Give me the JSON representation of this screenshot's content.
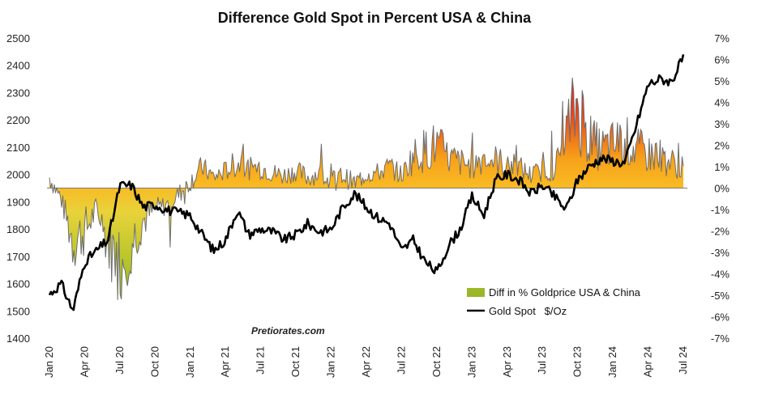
{
  "chart_data": {
    "type": "line",
    "title": "Difference Gold Spot in Percent USA & China",
    "watermark": "Pretiorates.com",
    "x_tick_labels": [
      "Jan 20",
      "Apr 20",
      "Jul 20",
      "Oct 20",
      "Jan 21",
      "Apr 21",
      "Jul 21",
      "Oct 21",
      "Jan 22",
      "Apr 22",
      "Jul 22",
      "Oct 22",
      "Jan 23",
      "Apr 23",
      "Jul 23",
      "Oct 23",
      "Jan 24",
      "Apr 24",
      "Jul 24"
    ],
    "y_left_ticks": [
      "1400",
      "1500",
      "1600",
      "1700",
      "1800",
      "1900",
      "2000",
      "2100",
      "2200",
      "2300",
      "2400",
      "2500"
    ],
    "y_left_range": [
      1400,
      2500
    ],
    "y_right_ticks": [
      "7%",
      "6%",
      "5%",
      "4%",
      "3%",
      "2%",
      "1%",
      "0%",
      "-1%",
      "-2%",
      "-3%",
      "-4%",
      "-5%",
      "-6%",
      "-7%"
    ],
    "y_right_range": [
      -7,
      7
    ],
    "legend_position": "bottom-right",
    "series": [
      {
        "name": "Diff in % Goldprice USA & China",
        "axis": "right",
        "style": "area",
        "x": [
          "Jan 20",
          "Feb 20",
          "Mar 20",
          "Apr 20",
          "May 20",
          "Jun 20",
          "Jul 20",
          "Aug 20",
          "Sep 20",
          "Oct 20",
          "Nov 20",
          "Dec 20",
          "Jan 21",
          "Feb 21",
          "Mar 21",
          "Apr 21",
          "May 21",
          "Jun 21",
          "Jul 21",
          "Aug 21",
          "Sep 21",
          "Oct 21",
          "Nov 21",
          "Dec 21",
          "Jan 22",
          "Feb 22",
          "Mar 22",
          "Apr 22",
          "May 22",
          "Jun 22",
          "Jul 22",
          "Aug 22",
          "Sep 22",
          "Oct 22",
          "Nov 22",
          "Dec 22",
          "Jan 23",
          "Feb 23",
          "Mar 23",
          "Apr 23",
          "May 23",
          "Jun 23",
          "Jul 23",
          "Aug 23",
          "Sep 23",
          "Oct 23",
          "Nov 23",
          "Dec 23",
          "Jan 24",
          "Feb 24",
          "Mar 24",
          "Apr 24",
          "May 24",
          "Jun 24",
          "Jul 24"
        ],
        "values": [
          0.5,
          -0.5,
          -2.5,
          -2.0,
          -1.0,
          -2.5,
          -3.5,
          -2.5,
          -1.5,
          -1.0,
          -0.8,
          -0.3,
          0.3,
          1.0,
          0.5,
          0.8,
          1.2,
          0.9,
          1.0,
          0.7,
          0.6,
          0.8,
          0.5,
          0.7,
          0.3,
          0.6,
          0.2,
          0.7,
          0.7,
          1.0,
          0.6,
          1.5,
          1.8,
          2.0,
          1.4,
          1.2,
          1.0,
          1.5,
          1.3,
          1.1,
          1.0,
          0.6,
          0.8,
          0.8,
          2.5,
          4.0,
          2.2,
          1.8,
          2.0,
          2.2,
          1.8,
          1.6,
          1.5,
          1.2,
          0.9
        ]
      },
      {
        "name": "Gold Spot   $/Oz",
        "axis": "left",
        "style": "line",
        "x": [
          "Jan 20",
          "Feb 20",
          "Mar 20",
          "Apr 20",
          "May 20",
          "Jun 20",
          "Jul 20",
          "Aug 20",
          "Sep 20",
          "Oct 20",
          "Nov 20",
          "Dec 20",
          "Jan 21",
          "Feb 21",
          "Mar 21",
          "Apr 21",
          "May 21",
          "Jun 21",
          "Jul 21",
          "Aug 21",
          "Sep 21",
          "Oct 21",
          "Nov 21",
          "Dec 21",
          "Jan 22",
          "Feb 22",
          "Mar 22",
          "Apr 22",
          "May 22",
          "Jun 22",
          "Jul 22",
          "Aug 22",
          "Sep 22",
          "Oct 22",
          "Nov 22",
          "Dec 22",
          "Jan 23",
          "Feb 23",
          "Mar 23",
          "Apr 23",
          "May 23",
          "Jun 23",
          "Jul 23",
          "Aug 23",
          "Sep 23",
          "Oct 23",
          "Nov 23",
          "Dec 23",
          "Jan 24",
          "Feb 24",
          "Mar 24",
          "Apr 24",
          "May 24",
          "Jun 24",
          "Jul 24"
        ],
        "values": [
          1560,
          1600,
          1500,
          1680,
          1720,
          1760,
          1960,
          1960,
          1880,
          1890,
          1870,
          1860,
          1850,
          1780,
          1720,
          1760,
          1870,
          1780,
          1800,
          1790,
          1760,
          1780,
          1820,
          1790,
          1800,
          1880,
          1930,
          1880,
          1840,
          1820,
          1720,
          1760,
          1680,
          1640,
          1740,
          1800,
          1920,
          1850,
          1980,
          2000,
          1980,
          1930,
          1960,
          1920,
          1870,
          1980,
          2030,
          2060,
          2050,
          2040,
          2180,
          2330,
          2350,
          2340,
          2430
        ]
      }
    ]
  }
}
